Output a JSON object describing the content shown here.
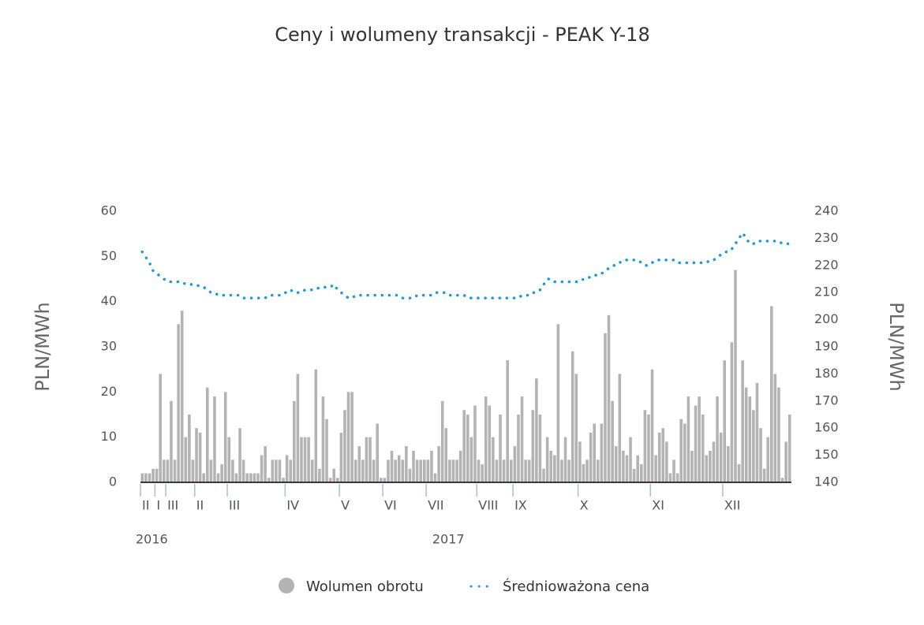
{
  "chart_data": {
    "type": "bar-line",
    "title": "Ceny i wolumeny transakcji - PEAK Y-18",
    "y_label": "PLN/MWh",
    "y2_label": "PLN/MWh",
    "ylim": [
      0,
      60
    ],
    "yticks": [
      0,
      10,
      20,
      30,
      40,
      50,
      60
    ],
    "y2lim": [
      140,
      240
    ],
    "y2ticks": [
      140,
      150,
      160,
      170,
      180,
      190,
      200,
      210,
      220,
      230,
      240
    ],
    "categories": [
      "II",
      null,
      null,
      null,
      "I",
      null,
      null,
      "III",
      null,
      null,
      null,
      null,
      null,
      null,
      null,
      "II",
      null,
      null,
      null,
      null,
      null,
      null,
      null,
      null,
      "III",
      null,
      null,
      null,
      null,
      null,
      null,
      null,
      null,
      null,
      null,
      null,
      null,
      null,
      null,
      null,
      "IV",
      null,
      null,
      null,
      null,
      null,
      null,
      null,
      null,
      null,
      null,
      null,
      null,
      null,
      null,
      "V",
      null,
      null,
      null,
      null,
      null,
      null,
      null,
      null,
      null,
      null,
      null,
      "VI",
      null,
      null,
      null,
      null,
      null,
      null,
      null,
      null,
      null,
      null,
      null,
      "VII",
      null,
      null,
      null,
      null,
      null,
      null,
      null,
      null,
      null,
      null,
      null,
      null,
      null,
      "VIII",
      null,
      null,
      null,
      null,
      null,
      null,
      null,
      null,
      null,
      "IX",
      null,
      null,
      null,
      null,
      null,
      null,
      null,
      null,
      null,
      null,
      null,
      null,
      null,
      null,
      null,
      null,
      null,
      "X",
      null,
      null,
      null,
      null,
      null,
      null,
      null,
      null,
      null,
      null,
      null,
      null,
      null,
      null,
      null,
      null,
      null,
      null,
      null,
      "XI",
      null,
      null,
      null,
      null,
      null,
      null,
      null,
      null,
      null,
      null,
      null,
      null,
      null,
      null,
      null,
      null,
      null,
      null,
      null,
      "XII",
      null,
      null,
      null,
      null,
      null,
      null,
      null,
      null,
      null,
      null,
      null,
      null,
      null,
      null,
      null,
      null,
      null,
      null
    ],
    "years": [
      "2016",
      null,
      null,
      null,
      null,
      null,
      null,
      null,
      null,
      null,
      null,
      null,
      null,
      null,
      null,
      null,
      null,
      null,
      null,
      null,
      null,
      null,
      null,
      null,
      null,
      null,
      null,
      null,
      null,
      null,
      null,
      null,
      null,
      null,
      null,
      null,
      null,
      null,
      null,
      null,
      null,
      null,
      null,
      null,
      null,
      null,
      null,
      null,
      null,
      null,
      null,
      null,
      null,
      null,
      null,
      null,
      null,
      null,
      null,
      null,
      null,
      null,
      null,
      null,
      null,
      null,
      null,
      null,
      null,
      null,
      null,
      null,
      null,
      null,
      null,
      null,
      null,
      null,
      null,
      null,
      null,
      null,
      "2017",
      null,
      null,
      null,
      null,
      null,
      null,
      null,
      null,
      null,
      null,
      null,
      null,
      null,
      null,
      null,
      null,
      null,
      null,
      null,
      null,
      null,
      null,
      null,
      null,
      null,
      null,
      null,
      null,
      null,
      null,
      null,
      null,
      null,
      null,
      null,
      null,
      null,
      null,
      null,
      null,
      null,
      null,
      null,
      null,
      null,
      null,
      null,
      null,
      null,
      null,
      null,
      null,
      null,
      null,
      null,
      null,
      null,
      null,
      null,
      null,
      null,
      null,
      null,
      null,
      null,
      null,
      null,
      null,
      null,
      null,
      null,
      null,
      null,
      null,
      null,
      null,
      null,
      null,
      null,
      null,
      null,
      null,
      null,
      null,
      null,
      null,
      null,
      null,
      null,
      null,
      null,
      null,
      null,
      null,
      null,
      null,
      null
    ],
    "series": [
      {
        "name": "Wolumen obrotu",
        "color": "#b3b3b3",
        "values": [
          2,
          2,
          2,
          3,
          3,
          24,
          5,
          5,
          18,
          5,
          35,
          38,
          10,
          15,
          5,
          12,
          11,
          2,
          21,
          5,
          19,
          2,
          4,
          20,
          10,
          5,
          2,
          12,
          5,
          2,
          2,
          2,
          2,
          6,
          8,
          1,
          5,
          5,
          5,
          1,
          6,
          5,
          18,
          24,
          10,
          10,
          10,
          5,
          25,
          3,
          19,
          14,
          1,
          3,
          1,
          11,
          16,
          20,
          20,
          5,
          8,
          5,
          10,
          10,
          5,
          13,
          1,
          1,
          5,
          7,
          5,
          6,
          5,
          8,
          3,
          7,
          5,
          5,
          5,
          5,
          7,
          2,
          8,
          18,
          12,
          5,
          5,
          5,
          7,
          16,
          15,
          10,
          17,
          5,
          4,
          19,
          17,
          10,
          5,
          15,
          5,
          27,
          5,
          8,
          15,
          19,
          5,
          5,
          16,
          23,
          15,
          3,
          10,
          7,
          6,
          35,
          5,
          10,
          5,
          29,
          24,
          9,
          4,
          5,
          11,
          13,
          5,
          13,
          33,
          37,
          18,
          8,
          24,
          7,
          6,
          10,
          3,
          6,
          4,
          16,
          15,
          25,
          6,
          11,
          12,
          9,
          2,
          5,
          2,
          14,
          13,
          19,
          7,
          17,
          19,
          15,
          6,
          7,
          9,
          19,
          11,
          27,
          8,
          31,
          47,
          4,
          27,
          21,
          19,
          16,
          22,
          12,
          3,
          10,
          39,
          24,
          21,
          1,
          9,
          15
        ]
      },
      {
        "name": "Średnioważona cena",
        "color": "#1a9bd7",
        "axis": "y2",
        "values": [
          225,
          223,
          221,
          218,
          217,
          216,
          215,
          214,
          214,
          214,
          214,
          214,
          213,
          213,
          213,
          213,
          212,
          212,
          211,
          210,
          210,
          209,
          209,
          209,
          209,
          209,
          209,
          209,
          208,
          208,
          208,
          208,
          208,
          208,
          208,
          209,
          209,
          209,
          209,
          210,
          210,
          211,
          210,
          210,
          210,
          211,
          211,
          211,
          211,
          212,
          212,
          212,
          212,
          213,
          211,
          210,
          209,
          208,
          208,
          209,
          209,
          209,
          209,
          209,
          209,
          209,
          209,
          209,
          209,
          209,
          209,
          209,
          208,
          208,
          208,
          208,
          209,
          209,
          209,
          209,
          209,
          210,
          210,
          210,
          210,
          209,
          209,
          209,
          209,
          209,
          208,
          208,
          208,
          208,
          208,
          208,
          208,
          208,
          208,
          208,
          208,
          208,
          208,
          208,
          208,
          209,
          209,
          209,
          210,
          210,
          211,
          213,
          215,
          215,
          214,
          214,
          214,
          214,
          214,
          214,
          214,
          214,
          215,
          215,
          216,
          216,
          217,
          217,
          218,
          219,
          220,
          220,
          221,
          222,
          222,
          222,
          222,
          222,
          221,
          220,
          220,
          221,
          222,
          222,
          222,
          222,
          222,
          222,
          221,
          221,
          221,
          221,
          221,
          221,
          221,
          221,
          221,
          222,
          222,
          223,
          224,
          225,
          225,
          226,
          228,
          230,
          232,
          230,
          228,
          228,
          229,
          229,
          229,
          229,
          229,
          229,
          229,
          228,
          228,
          228
        ]
      }
    ]
  }
}
